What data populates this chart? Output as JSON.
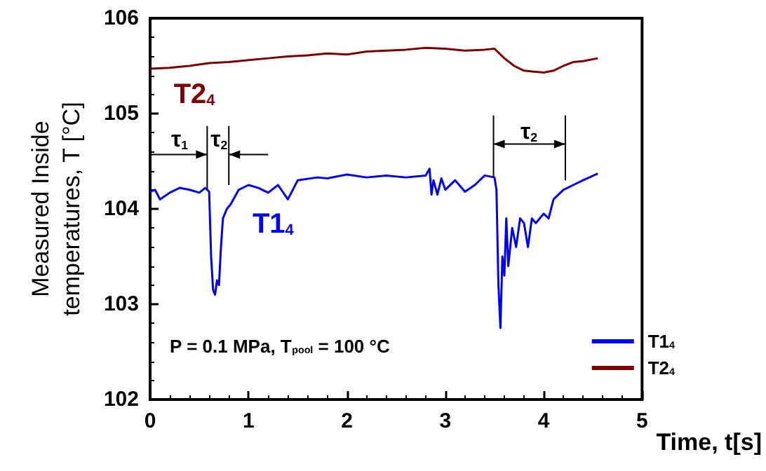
{
  "chart_data": {
    "type": "line",
    "xlabel": "Time, t[s]",
    "ylabel": "Measured Inside temperatures, T [°C]",
    "xlim": [
      0,
      5
    ],
    "xticks": [
      0,
      1,
      2,
      3,
      4,
      5
    ],
    "ylim": [
      102,
      106
    ],
    "yticks": [
      102,
      103,
      104,
      105,
      106
    ],
    "grid": false,
    "legend": "bottom right",
    "marker": "none",
    "line_style": "solid",
    "series": [
      {
        "name": "T1$_{4}$",
        "color": "#0000ff",
        "x": [
          0,
          0.05,
          0.1,
          0.2,
          0.3,
          0.4,
          0.5,
          0.56,
          0.6,
          0.62,
          0.64,
          0.66,
          0.68,
          0.7,
          0.72,
          0.74,
          0.78,
          0.82,
          0.9,
          1.0,
          1.1,
          1.2,
          1.3,
          1.4,
          1.5,
          1.7,
          1.8,
          2.0,
          2.2,
          2.4,
          2.6,
          2.8,
          2.84,
          2.86,
          2.88,
          2.92,
          2.96,
          3.0,
          3.1,
          3.2,
          3.3,
          3.4,
          3.5,
          3.52,
          3.54,
          3.56,
          3.58,
          3.6,
          3.62,
          3.64,
          3.66,
          3.68,
          3.72,
          3.76,
          3.8,
          3.84,
          3.88,
          3.92,
          4.0,
          4.05,
          4.1,
          4.2,
          4.3,
          4.4,
          4.55
        ],
        "values": [
          104.18,
          104.2,
          104.1,
          104.17,
          104.22,
          104.2,
          104.17,
          104.22,
          104.18,
          103.5,
          103.15,
          103.1,
          103.25,
          103.2,
          103.6,
          103.9,
          104.0,
          104.05,
          104.2,
          104.25,
          104.22,
          104.17,
          104.25,
          104.1,
          104.3,
          104.33,
          104.32,
          104.36,
          104.33,
          104.35,
          104.33,
          104.35,
          104.42,
          104.15,
          104.3,
          104.15,
          104.32,
          104.2,
          104.3,
          104.18,
          104.25,
          104.35,
          104.33,
          104.2,
          103.2,
          102.75,
          103.5,
          103.3,
          103.9,
          103.4,
          103.6,
          103.8,
          103.6,
          103.9,
          103.85,
          103.6,
          103.9,
          103.85,
          103.95,
          103.9,
          104.1,
          104.2,
          104.25,
          104.3,
          104.37
        ]
      },
      {
        "name": "T2$_{4}$",
        "color": "#800000",
        "x": [
          0,
          0.2,
          0.4,
          0.6,
          0.8,
          1.0,
          1.2,
          1.4,
          1.6,
          1.8,
          2.0,
          2.2,
          2.4,
          2.6,
          2.8,
          3.0,
          3.2,
          3.4,
          3.5,
          3.6,
          3.7,
          3.8,
          3.9,
          4.0,
          4.1,
          4.2,
          4.3,
          4.4,
          4.55
        ],
        "values": [
          105.47,
          105.48,
          105.5,
          105.53,
          105.54,
          105.56,
          105.58,
          105.6,
          105.61,
          105.63,
          105.62,
          105.65,
          105.66,
          105.67,
          105.69,
          105.68,
          105.66,
          105.67,
          105.68,
          105.58,
          105.5,
          105.45,
          105.44,
          105.43,
          105.45,
          105.5,
          105.54,
          105.55,
          105.58
        ]
      }
    ],
    "annotations": [
      "T2$_{4}$",
      "T1$_{4}$",
      "τ$_{1}$",
      {
        "text": "τ$_{2}$",
        "x": 0.58,
        "y": 104.2
      },
      {
        "text": "τ$_{2}$",
        "x": 3.49,
        "y": 104.33
      },
      "P = 0.1 MPa, T$_{pool}$ = 100 °C"
    ]
  }
}
